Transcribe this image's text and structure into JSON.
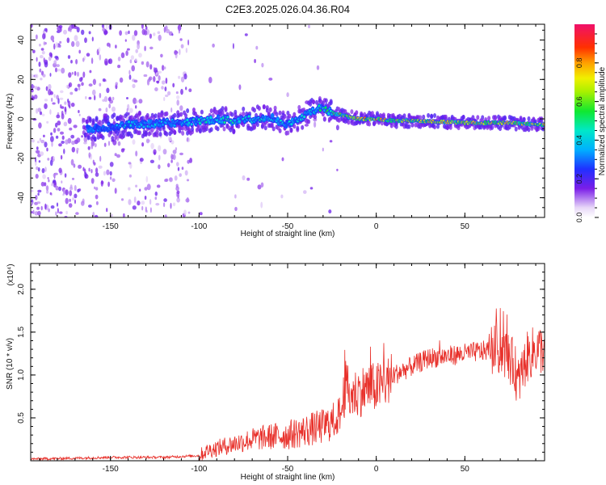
{
  "title": "C2E3.2025.026.04.36.R04",
  "chart_data": [
    {
      "type": "heatmap",
      "xlabel": "Height of straight line (km)",
      "ylabel": "Frequency (Hz)",
      "xlim": [
        -195,
        95
      ],
      "ylim": [
        -50,
        48
      ],
      "xticks": [
        -150,
        -100,
        -50,
        0,
        50
      ],
      "yticks": [
        -40,
        -20,
        0,
        20,
        40
      ],
      "colorbar": {
        "label": "Normalized spectral amplitude",
        "range": [
          0,
          1
        ],
        "ticks": [
          0.0,
          0.2,
          0.4,
          0.6,
          0.8
        ],
        "tick_labels": [
          "0.0",
          "0.2",
          "0.4",
          "0.6",
          "0.8"
        ]
      },
      "ridge": {
        "x": [
          -160,
          -150,
          -140,
          -130,
          -120,
          -110,
          -100,
          -90,
          -80,
          -70,
          -60,
          -50,
          -40,
          -30,
          -25,
          -10,
          0,
          10,
          25,
          50,
          75,
          93
        ],
        "y": [
          -5,
          -4,
          -3,
          -3,
          -2,
          -2,
          -1,
          0,
          -1,
          0,
          1,
          -3,
          2,
          6,
          3,
          0,
          0,
          -1,
          -1,
          -2,
          -2,
          -3
        ],
        "amplitude": [
          0.3,
          0.35,
          0.4,
          0.4,
          0.4,
          0.4,
          0.45,
          0.45,
          0.45,
          0.45,
          0.45,
          0.4,
          0.45,
          0.5,
          0.55,
          0.75,
          0.8,
          0.7,
          0.7,
          0.75,
          0.75,
          0.7
        ]
      }
    },
    {
      "type": "line",
      "xlabel": "Height of straight line (km)",
      "ylabel": "SNR (10 * v/v)",
      "scale_label": "(x10⁴)",
      "xlim": [
        -195,
        95
      ],
      "ylim": [
        0,
        2.3
      ],
      "xticks": [
        -150,
        -100,
        -50,
        0,
        50
      ],
      "yticks": [
        0.5,
        1.0,
        1.5,
        2.0
      ],
      "ytick_labels": [
        "0.5",
        "1.0",
        "1.5",
        "2.0"
      ],
      "series": [
        {
          "color": "#e8302a",
          "x": [
            -195,
            -170,
            -150,
            -120,
            -100,
            -95,
            -80,
            -70,
            -60,
            -50,
            -40,
            -30,
            -25,
            -20,
            -17,
            -15,
            -10,
            -5,
            0,
            5,
            10,
            15,
            20,
            30,
            40,
            50,
            60,
            70,
            75,
            78,
            80,
            85,
            90,
            95
          ],
          "y": [
            0.02,
            0.03,
            0.04,
            0.04,
            0.06,
            0.12,
            0.2,
            0.25,
            0.28,
            0.3,
            0.35,
            0.4,
            0.45,
            0.55,
            0.9,
            0.75,
            0.8,
            0.85,
            0.85,
            0.9,
            1.0,
            1.05,
            1.1,
            1.2,
            1.22,
            1.25,
            1.28,
            1.3,
            1.2,
            1.1,
            0.9,
            1.2,
            1.3,
            1.3
          ]
        }
      ]
    }
  ]
}
